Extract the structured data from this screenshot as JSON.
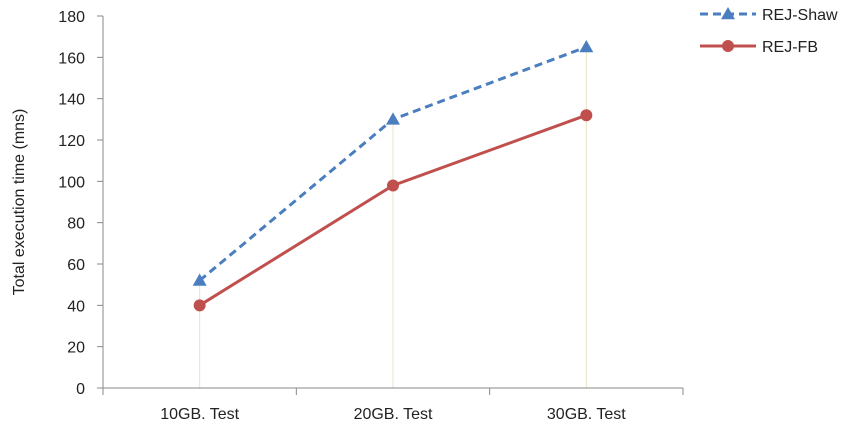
{
  "chart_data": {
    "type": "line",
    "categories": [
      "10GB. Test",
      "20GB. Test",
      "30GB. Test"
    ],
    "ylabel": "Total execution time (mns)",
    "xlabel": "",
    "ylim": [
      0,
      180
    ],
    "ytick_step": 20,
    "yticks": [
      "0",
      "20",
      "40",
      "60",
      "80",
      "100",
      "120",
      "140",
      "160",
      "180"
    ],
    "grid": false,
    "drop_lines": true,
    "legend_position": "top-right",
    "series": [
      {
        "name": "REJ-Shaw",
        "values": [
          52,
          130,
          165
        ],
        "color": "#4a7ebf",
        "dash": "dashed",
        "marker": "triangle"
      },
      {
        "name": "REJ-FB",
        "values": [
          40,
          98,
          132
        ],
        "color": "#c0504d",
        "dash": "solid",
        "marker": "circle"
      }
    ]
  }
}
